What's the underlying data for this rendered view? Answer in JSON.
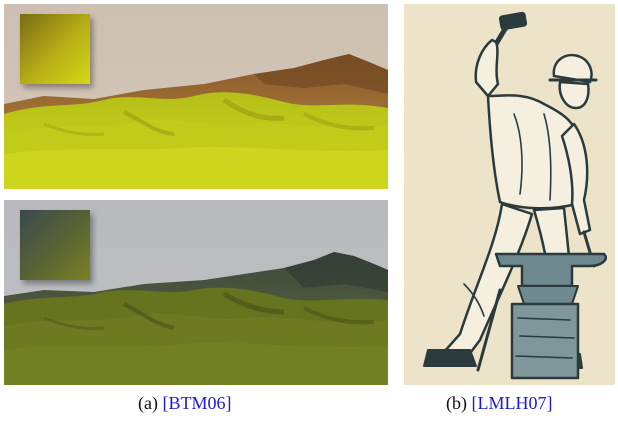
{
  "figure": {
    "panels": [
      {
        "id": "a",
        "images": [
          "terrain-render-warm",
          "terrain-render-cool"
        ],
        "caption_label": "(a)",
        "citation": "[BTM06]"
      },
      {
        "id": "b",
        "images": [
          "blacksmith-illustration"
        ],
        "caption_label": "(b)",
        "citation": "[LMLH07]"
      }
    ],
    "colors": {
      "citation_link": "#1a1ad6",
      "warm_sky": "#cfc1b0",
      "cool_sky": "#b9bbbf",
      "grass_warm": "#c9d21a",
      "grass_cool": "#6d7a22",
      "illustration_bg": "#ece3c8",
      "illustration_ink": "#2a3a3d",
      "illustration_metal": "#6e8a90"
    }
  }
}
